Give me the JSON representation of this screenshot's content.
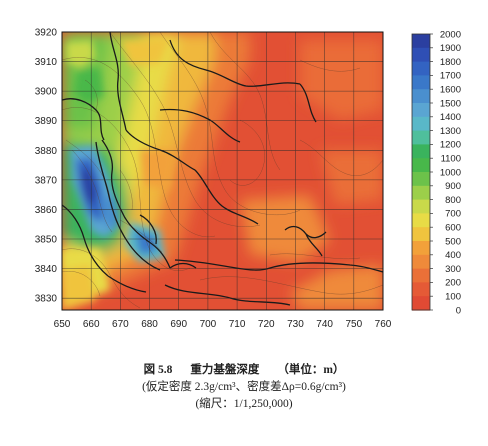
{
  "map": {
    "x_ticks": [
      "650",
      "660",
      "670",
      "680",
      "690",
      "700",
      "710",
      "720",
      "730",
      "740",
      "750",
      "760"
    ],
    "y_ticks": [
      "3920",
      "3910",
      "3900",
      "3890",
      "3880",
      "3870",
      "3860",
      "3850",
      "3840",
      "3830"
    ],
    "x_range": [
      650,
      760
    ],
    "y_range": [
      3826,
      3920
    ],
    "grid": true
  },
  "colorbar": {
    "labels": [
      "2000",
      "1900",
      "1800",
      "1700",
      "1600",
      "1500",
      "1400",
      "1300",
      "1200",
      "1100",
      "1000",
      "900",
      "800",
      "700",
      "600",
      "500",
      "400",
      "300",
      "200",
      "100",
      "0"
    ],
    "colors": [
      "#2b3fa0",
      "#2f4fb5",
      "#3363c2",
      "#3a78c9",
      "#4a8fce",
      "#5aa5d2",
      "#59b8c8",
      "#4fbf9c",
      "#3ab35d",
      "#48b84a",
      "#6cc24a",
      "#9ccf4a",
      "#c9d94a",
      "#e8dc46",
      "#f0c43e",
      "#f2a13a",
      "#ef8a3a",
      "#ea7038",
      "#e55a36",
      "#e04a34"
    ]
  },
  "caption": {
    "title_label": "図 5.8",
    "title_text": "重力基盤深度",
    "title_unit": "（単位：m）",
    "line2": "(仮定密度 2.3g/cm³、密度差Δρ=0.6g/cm³)",
    "line3": "(縮尺：1/1,250,000)"
  }
}
